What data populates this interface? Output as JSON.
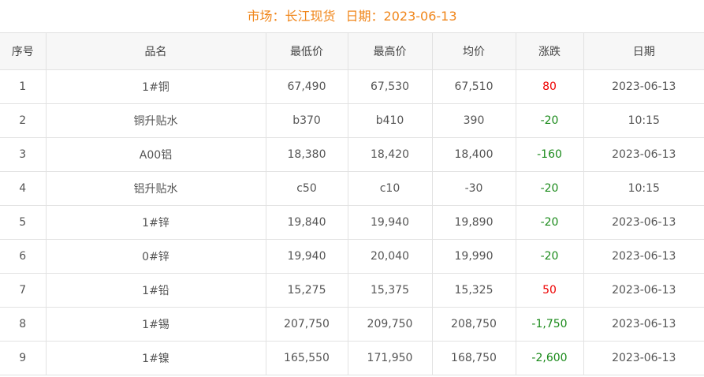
{
  "header": {
    "market_label": "市场：长江现货",
    "date_label": "日期：2023-06-13"
  },
  "columns": [
    "序号",
    "品名",
    "最低价",
    "最高价",
    "均价",
    "涨跌",
    "日期"
  ],
  "colors": {
    "title": "#f08519",
    "up": "#ee0000",
    "down": "#1a8a1a"
  },
  "rows": [
    {
      "no": "1",
      "name": "1#铜",
      "low": "67,490",
      "high": "67,530",
      "avg": "67,510",
      "change": "80",
      "dir": "up",
      "date": "2023-06-13"
    },
    {
      "no": "2",
      "name": "铜升贴水",
      "low": "b370",
      "high": "b410",
      "avg": "390",
      "change": "-20",
      "dir": "down",
      "date": "10:15"
    },
    {
      "no": "3",
      "name": "A00铝",
      "low": "18,380",
      "high": "18,420",
      "avg": "18,400",
      "change": "-160",
      "dir": "down",
      "date": "2023-06-13"
    },
    {
      "no": "4",
      "name": "铝升贴水",
      "low": "c50",
      "high": "c10",
      "avg": "-30",
      "change": "-20",
      "dir": "down",
      "date": "10:15"
    },
    {
      "no": "5",
      "name": "1#锌",
      "low": "19,840",
      "high": "19,940",
      "avg": "19,890",
      "change": "-20",
      "dir": "down",
      "date": "2023-06-13"
    },
    {
      "no": "6",
      "name": "0#锌",
      "low": "19,940",
      "high": "20,040",
      "avg": "19,990",
      "change": "-20",
      "dir": "down",
      "date": "2023-06-13"
    },
    {
      "no": "7",
      "name": "1#铅",
      "low": "15,275",
      "high": "15,375",
      "avg": "15,325",
      "change": "50",
      "dir": "up",
      "date": "2023-06-13"
    },
    {
      "no": "8",
      "name": "1#锡",
      "low": "207,750",
      "high": "209,750",
      "avg": "208,750",
      "change": "-1,750",
      "dir": "down",
      "date": "2023-06-13"
    },
    {
      "no": "9",
      "name": "1#镍",
      "low": "165,550",
      "high": "171,950",
      "avg": "168,750",
      "change": "-2,600",
      "dir": "down",
      "date": "2023-06-13"
    }
  ]
}
